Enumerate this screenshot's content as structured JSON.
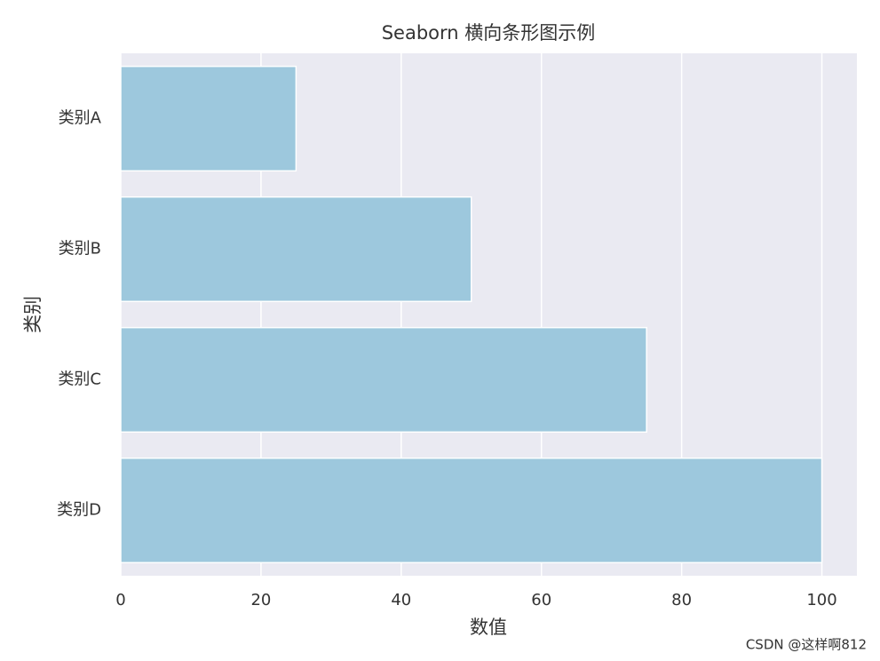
{
  "chart_data": {
    "type": "barh",
    "title": "Seaborn 横向条形图示例",
    "xlabel": "数值",
    "ylabel": "类别",
    "categories": [
      "类别A",
      "类别B",
      "类别C",
      "类别D"
    ],
    "values": [
      25,
      50,
      75,
      100
    ],
    "color": "#9dc8dd",
    "xlim": [
      0,
      105
    ],
    "xticks": [
      0,
      20,
      40,
      60,
      80,
      100
    ],
    "grid": true
  },
  "watermark": "CSDN @这样啊812"
}
